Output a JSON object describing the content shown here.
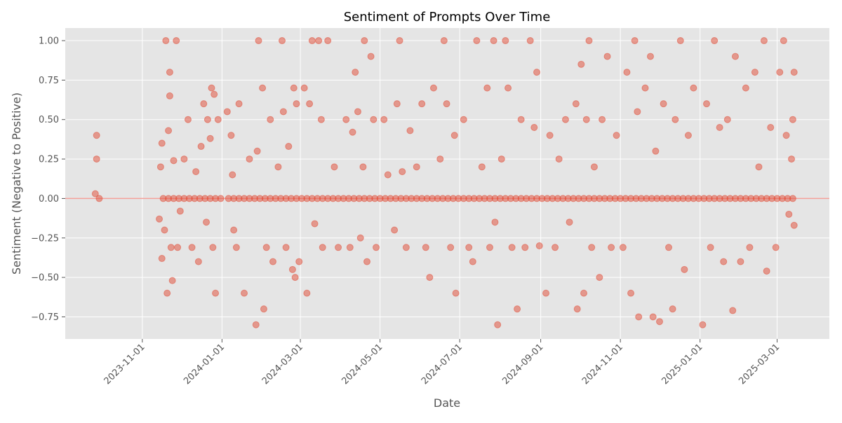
{
  "chart_data": {
    "type": "scatter",
    "title": "Sentiment of Prompts Over Time",
    "xlabel": "Date",
    "ylabel": "Sentiment (Negative to Positive)",
    "xlim": [
      "2023-09-03",
      "2025-04-10"
    ],
    "ylim": [
      -0.89,
      1.08
    ],
    "x_ticks": [
      "2023-11-01",
      "2024-01-01",
      "2024-03-01",
      "2024-05-01",
      "2024-07-01",
      "2024-09-01",
      "2024-11-01",
      "2025-01-01",
      "2025-03-01"
    ],
    "y_ticks": [
      1.0,
      0.75,
      0.5,
      0.25,
      0.0,
      -0.25,
      -0.5,
      -0.75
    ],
    "y_tick_labels": [
      "1.00",
      "0.75",
      "0.50",
      "0.25",
      "0.00",
      "−0.25",
      "−0.50",
      "−0.75"
    ],
    "grid": true,
    "reference_line": {
      "y": 0,
      "color": "#F4A09A"
    },
    "colors": {
      "point": "#E24A33",
      "background": "#E5E5E5",
      "grid": "#FFFFFF"
    },
    "points": [
      [
        "2023-09-26",
        0.03
      ],
      [
        "2023-09-27",
        0.4
      ],
      [
        "2023-09-27",
        0.25
      ],
      [
        "2023-09-29",
        0.0
      ],
      [
        "2023-11-14",
        -0.13
      ],
      [
        "2023-11-15",
        0.2
      ],
      [
        "2023-11-16",
        0.35
      ],
      [
        "2023-11-16",
        -0.38
      ],
      [
        "2023-11-18",
        -0.2
      ],
      [
        "2023-11-19",
        1.0
      ],
      [
        "2023-11-20",
        -0.6
      ],
      [
        "2023-11-21",
        0.43
      ],
      [
        "2023-11-22",
        0.8
      ],
      [
        "2023-11-22",
        0.65
      ],
      [
        "2023-11-23",
        -0.31
      ],
      [
        "2023-11-24",
        -0.52
      ],
      [
        "2023-11-25",
        0.24
      ],
      [
        "2023-11-27",
        1.0
      ],
      [
        "2023-11-28",
        -0.31
      ],
      [
        "2023-11-30",
        -0.08
      ],
      [
        "2023-12-03",
        0.25
      ],
      [
        "2023-12-06",
        0.5
      ],
      [
        "2023-12-09",
        -0.31
      ],
      [
        "2023-12-12",
        0.17
      ],
      [
        "2023-12-14",
        -0.4
      ],
      [
        "2023-12-16",
        0.33
      ],
      [
        "2023-12-18",
        0.6
      ],
      [
        "2023-12-20",
        -0.15
      ],
      [
        "2023-12-21",
        0.5
      ],
      [
        "2023-12-23",
        0.38
      ],
      [
        "2023-12-24",
        0.7
      ],
      [
        "2023-12-25",
        -0.31
      ],
      [
        "2023-12-26",
        0.66
      ],
      [
        "2023-12-27",
        -0.6
      ],
      [
        "2023-12-29",
        0.5
      ],
      [
        "2024-01-05",
        0.55
      ],
      [
        "2024-01-08",
        0.4
      ],
      [
        "2024-01-09",
        0.15
      ],
      [
        "2024-01-10",
        -0.2
      ],
      [
        "2024-01-12",
        -0.31
      ],
      [
        "2024-01-14",
        0.6
      ],
      [
        "2024-01-18",
        -0.6
      ],
      [
        "2024-01-22",
        0.25
      ],
      [
        "2024-01-27",
        -0.8
      ],
      [
        "2024-01-28",
        0.3
      ],
      [
        "2024-01-29",
        1.0
      ],
      [
        "2024-02-01",
        0.7
      ],
      [
        "2024-02-02",
        -0.7
      ],
      [
        "2024-02-04",
        -0.31
      ],
      [
        "2024-02-07",
        0.5
      ],
      [
        "2024-02-09",
        -0.4
      ],
      [
        "2024-02-13",
        0.2
      ],
      [
        "2024-02-16",
        1.0
      ],
      [
        "2024-02-17",
        0.55
      ],
      [
        "2024-02-19",
        -0.31
      ],
      [
        "2024-02-21",
        0.33
      ],
      [
        "2024-02-24",
        -0.45
      ],
      [
        "2024-02-25",
        0.7
      ],
      [
        "2024-02-26",
        -0.5
      ],
      [
        "2024-02-27",
        0.6
      ],
      [
        "2024-02-29",
        -0.4
      ],
      [
        "2024-03-04",
        0.7
      ],
      [
        "2024-03-06",
        -0.6
      ],
      [
        "2024-03-08",
        0.6
      ],
      [
        "2024-03-10",
        1.0
      ],
      [
        "2024-03-12",
        -0.16
      ],
      [
        "2024-03-15",
        1.0
      ],
      [
        "2024-03-17",
        0.5
      ],
      [
        "2024-03-18",
        -0.31
      ],
      [
        "2024-03-22",
        1.0
      ],
      [
        "2024-03-27",
        0.2
      ],
      [
        "2024-03-30",
        -0.31
      ],
      [
        "2024-04-05",
        0.5
      ],
      [
        "2024-04-08",
        -0.31
      ],
      [
        "2024-04-10",
        0.42
      ],
      [
        "2024-04-12",
        0.8
      ],
      [
        "2024-04-14",
        0.55
      ],
      [
        "2024-04-16",
        -0.25
      ],
      [
        "2024-04-18",
        0.2
      ],
      [
        "2024-04-19",
        1.0
      ],
      [
        "2024-04-21",
        -0.4
      ],
      [
        "2024-04-24",
        0.9
      ],
      [
        "2024-04-26",
        0.5
      ],
      [
        "2024-04-28",
        -0.31
      ],
      [
        "2024-05-04",
        0.5
      ],
      [
        "2024-05-07",
        0.15
      ],
      [
        "2024-05-12",
        -0.2
      ],
      [
        "2024-05-14",
        0.6
      ],
      [
        "2024-05-16",
        1.0
      ],
      [
        "2024-05-18",
        0.17
      ],
      [
        "2024-05-21",
        -0.31
      ],
      [
        "2024-05-24",
        0.43
      ],
      [
        "2024-05-29",
        0.2
      ],
      [
        "2024-06-02",
        0.6
      ],
      [
        "2024-06-05",
        -0.31
      ],
      [
        "2024-06-08",
        -0.5
      ],
      [
        "2024-06-11",
        0.7
      ],
      [
        "2024-06-16",
        0.25
      ],
      [
        "2024-06-19",
        1.0
      ],
      [
        "2024-06-21",
        0.6
      ],
      [
        "2024-06-24",
        -0.31
      ],
      [
        "2024-06-27",
        0.4
      ],
      [
        "2024-06-28",
        -0.6
      ],
      [
        "2024-07-04",
        0.5
      ],
      [
        "2024-07-08",
        -0.31
      ],
      [
        "2024-07-11",
        -0.4
      ],
      [
        "2024-07-14",
        1.0
      ],
      [
        "2024-07-18",
        0.2
      ],
      [
        "2024-07-22",
        0.7
      ],
      [
        "2024-07-24",
        -0.31
      ],
      [
        "2024-07-27",
        1.0
      ],
      [
        "2024-07-28",
        -0.15
      ],
      [
        "2024-07-30",
        -0.8
      ],
      [
        "2024-08-02",
        0.25
      ],
      [
        "2024-08-05",
        1.0
      ],
      [
        "2024-08-07",
        0.7
      ],
      [
        "2024-08-10",
        -0.31
      ],
      [
        "2024-08-14",
        -0.7
      ],
      [
        "2024-08-17",
        0.5
      ],
      [
        "2024-08-20",
        -0.31
      ],
      [
        "2024-08-24",
        1.0
      ],
      [
        "2024-08-27",
        0.45
      ],
      [
        "2024-08-29",
        0.8
      ],
      [
        "2024-08-31",
        -0.3
      ],
      [
        "2024-09-05",
        -0.6
      ],
      [
        "2024-09-08",
        0.4
      ],
      [
        "2024-09-12",
        -0.31
      ],
      [
        "2024-09-15",
        0.25
      ],
      [
        "2024-09-20",
        0.5
      ],
      [
        "2024-09-23",
        -0.15
      ],
      [
        "2024-09-28",
        0.6
      ],
      [
        "2024-09-29",
        -0.7
      ],
      [
        "2024-10-02",
        0.85
      ],
      [
        "2024-10-04",
        -0.6
      ],
      [
        "2024-10-06",
        0.5
      ],
      [
        "2024-10-08",
        1.0
      ],
      [
        "2024-10-10",
        -0.31
      ],
      [
        "2024-10-12",
        0.2
      ],
      [
        "2024-10-16",
        -0.5
      ],
      [
        "2024-10-18",
        0.5
      ],
      [
        "2024-10-22",
        0.9
      ],
      [
        "2024-10-25",
        -0.31
      ],
      [
        "2024-10-29",
        0.4
      ],
      [
        "2024-11-03",
        -0.31
      ],
      [
        "2024-11-06",
        0.8
      ],
      [
        "2024-11-09",
        -0.6
      ],
      [
        "2024-11-12",
        1.0
      ],
      [
        "2024-11-14",
        0.55
      ],
      [
        "2024-11-15",
        -0.75
      ],
      [
        "2024-11-20",
        0.7
      ],
      [
        "2024-11-24",
        0.9
      ],
      [
        "2024-11-26",
        -0.75
      ],
      [
        "2024-11-28",
        0.3
      ],
      [
        "2024-12-01",
        -0.78
      ],
      [
        "2024-12-04",
        0.6
      ],
      [
        "2024-12-08",
        -0.31
      ],
      [
        "2024-12-11",
        -0.7
      ],
      [
        "2024-12-13",
        0.5
      ],
      [
        "2024-12-17",
        1.0
      ],
      [
        "2024-12-20",
        -0.45
      ],
      [
        "2024-12-23",
        0.4
      ],
      [
        "2024-12-27",
        0.7
      ],
      [
        "2025-01-03",
        -0.8
      ],
      [
        "2025-01-06",
        0.6
      ],
      [
        "2025-01-09",
        -0.31
      ],
      [
        "2025-01-12",
        1.0
      ],
      [
        "2025-01-16",
        0.45
      ],
      [
        "2025-01-19",
        -0.4
      ],
      [
        "2025-01-22",
        0.5
      ],
      [
        "2025-01-26",
        -0.71
      ],
      [
        "2025-01-28",
        0.9
      ],
      [
        "2025-02-01",
        -0.4
      ],
      [
        "2025-02-05",
        0.7
      ],
      [
        "2025-02-08",
        -0.31
      ],
      [
        "2025-02-12",
        0.8
      ],
      [
        "2025-02-15",
        0.2
      ],
      [
        "2025-02-19",
        1.0
      ],
      [
        "2025-02-21",
        -0.46
      ],
      [
        "2025-02-24",
        0.45
      ],
      [
        "2025-02-28",
        -0.31
      ],
      [
        "2025-03-03",
        0.8
      ],
      [
        "2025-03-06",
        1.0
      ],
      [
        "2025-03-08",
        0.4
      ],
      [
        "2025-03-10",
        -0.1
      ],
      [
        "2025-03-12",
        0.25
      ],
      [
        "2025-03-13",
        0.5
      ],
      [
        "2025-03-14",
        -0.17
      ],
      [
        "2025-03-14",
        0.8
      ],
      [
        "2023-11-17",
        0
      ],
      [
        "2023-11-21",
        0
      ],
      [
        "2023-11-25",
        0
      ],
      [
        "2023-11-29",
        0
      ],
      [
        "2023-12-03",
        0
      ],
      [
        "2023-12-07",
        0
      ],
      [
        "2023-12-11",
        0
      ],
      [
        "2023-12-15",
        0
      ],
      [
        "2023-12-19",
        0
      ],
      [
        "2023-12-23",
        0
      ],
      [
        "2023-12-27",
        0
      ],
      [
        "2023-12-31",
        0
      ],
      [
        "2024-01-06",
        0
      ],
      [
        "2024-01-10",
        0
      ],
      [
        "2024-01-14",
        0
      ],
      [
        "2024-01-18",
        0
      ],
      [
        "2024-01-22",
        0
      ],
      [
        "2024-01-26",
        0
      ],
      [
        "2024-01-30",
        0
      ],
      [
        "2024-02-03",
        0
      ],
      [
        "2024-02-07",
        0
      ],
      [
        "2024-02-11",
        0
      ],
      [
        "2024-02-15",
        0
      ],
      [
        "2024-02-19",
        0
      ],
      [
        "2024-02-23",
        0
      ],
      [
        "2024-02-27",
        0
      ],
      [
        "2024-03-02",
        0
      ],
      [
        "2024-03-06",
        0
      ],
      [
        "2024-03-10",
        0
      ],
      [
        "2024-03-14",
        0
      ],
      [
        "2024-03-18",
        0
      ],
      [
        "2024-03-22",
        0
      ],
      [
        "2024-03-26",
        0
      ],
      [
        "2024-03-30",
        0
      ],
      [
        "2024-04-03",
        0
      ],
      [
        "2024-04-07",
        0
      ],
      [
        "2024-04-11",
        0
      ],
      [
        "2024-04-15",
        0
      ],
      [
        "2024-04-19",
        0
      ],
      [
        "2024-04-23",
        0
      ],
      [
        "2024-04-27",
        0
      ],
      [
        "2024-05-01",
        0
      ],
      [
        "2024-05-05",
        0
      ],
      [
        "2024-05-09",
        0
      ],
      [
        "2024-05-13",
        0
      ],
      [
        "2024-05-17",
        0
      ],
      [
        "2024-05-21",
        0
      ],
      [
        "2024-05-25",
        0
      ],
      [
        "2024-05-29",
        0
      ],
      [
        "2024-06-02",
        0
      ],
      [
        "2024-06-06",
        0
      ],
      [
        "2024-06-10",
        0
      ],
      [
        "2024-06-14",
        0
      ],
      [
        "2024-06-18",
        0
      ],
      [
        "2024-06-22",
        0
      ],
      [
        "2024-06-26",
        0
      ],
      [
        "2024-06-30",
        0
      ],
      [
        "2024-07-04",
        0
      ],
      [
        "2024-07-08",
        0
      ],
      [
        "2024-07-12",
        0
      ],
      [
        "2024-07-16",
        0
      ],
      [
        "2024-07-20",
        0
      ],
      [
        "2024-07-24",
        0
      ],
      [
        "2024-07-28",
        0
      ],
      [
        "2024-08-01",
        0
      ],
      [
        "2024-08-05",
        0
      ],
      [
        "2024-08-09",
        0
      ],
      [
        "2024-08-13",
        0
      ],
      [
        "2024-08-17",
        0
      ],
      [
        "2024-08-21",
        0
      ],
      [
        "2024-08-25",
        0
      ],
      [
        "2024-08-29",
        0
      ],
      [
        "2024-09-02",
        0
      ],
      [
        "2024-09-06",
        0
      ],
      [
        "2024-09-10",
        0
      ],
      [
        "2024-09-14",
        0
      ],
      [
        "2024-09-18",
        0
      ],
      [
        "2024-09-22",
        0
      ],
      [
        "2024-09-26",
        0
      ],
      [
        "2024-09-30",
        0
      ],
      [
        "2024-10-04",
        0
      ],
      [
        "2024-10-08",
        0
      ],
      [
        "2024-10-12",
        0
      ],
      [
        "2024-10-16",
        0
      ],
      [
        "2024-10-20",
        0
      ],
      [
        "2024-10-24",
        0
      ],
      [
        "2024-10-28",
        0
      ],
      [
        "2024-11-01",
        0
      ],
      [
        "2024-11-05",
        0
      ],
      [
        "2024-11-09",
        0
      ],
      [
        "2024-11-13",
        0
      ],
      [
        "2024-11-17",
        0
      ],
      [
        "2024-11-21",
        0
      ],
      [
        "2024-11-25",
        0
      ],
      [
        "2024-11-29",
        0
      ],
      [
        "2024-12-03",
        0
      ],
      [
        "2024-12-07",
        0
      ],
      [
        "2024-12-11",
        0
      ],
      [
        "2024-12-15",
        0
      ],
      [
        "2024-12-19",
        0
      ],
      [
        "2024-12-23",
        0
      ],
      [
        "2024-12-27",
        0
      ],
      [
        "2024-12-31",
        0
      ],
      [
        "2025-01-04",
        0
      ],
      [
        "2025-01-08",
        0
      ],
      [
        "2025-01-12",
        0
      ],
      [
        "2025-01-16",
        0
      ],
      [
        "2025-01-20",
        0
      ],
      [
        "2025-01-24",
        0
      ],
      [
        "2025-01-28",
        0
      ],
      [
        "2025-02-01",
        0
      ],
      [
        "2025-02-05",
        0
      ],
      [
        "2025-02-09",
        0
      ],
      [
        "2025-02-13",
        0
      ],
      [
        "2025-02-17",
        0
      ],
      [
        "2025-02-21",
        0
      ],
      [
        "2025-02-25",
        0
      ],
      [
        "2025-03-01",
        0
      ],
      [
        "2025-03-05",
        0
      ],
      [
        "2025-03-09",
        0
      ],
      [
        "2025-03-13",
        0
      ]
    ]
  }
}
